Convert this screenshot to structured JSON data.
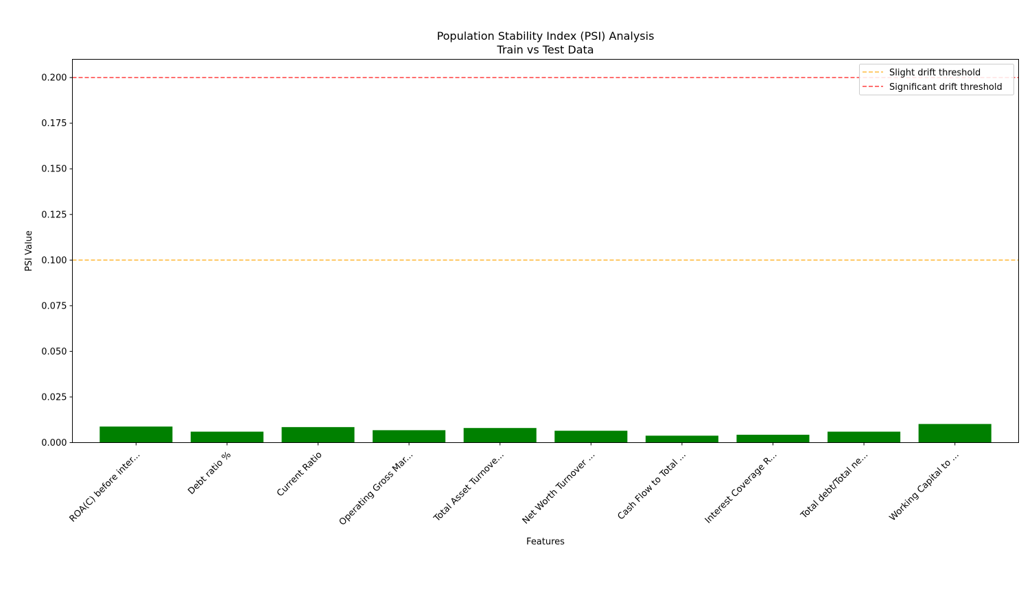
{
  "chart_data": {
    "type": "bar",
    "title": "Population Stability Index (PSI) Analysis",
    "subtitle": "Train vs Test Data",
    "xlabel": "Features",
    "ylabel": "PSI Value",
    "ylim": [
      0,
      0.21
    ],
    "yticks": [
      "0.000",
      "0.025",
      "0.050",
      "0.075",
      "0.100",
      "0.125",
      "0.150",
      "0.175",
      "0.200"
    ],
    "categories": [
      "ROA(C) before inter...",
      "Debt ratio %",
      "Current Ratio",
      "Operating Gross Mar...",
      "Total Asset Turnove...",
      "Net Worth Turnover ...",
      "Cash Flow to Total ...",
      "Interest Coverage R...",
      "Total debt/Total ne...",
      "Working Capital to ..."
    ],
    "values": [
      0.0088,
      0.006,
      0.0085,
      0.0068,
      0.008,
      0.0065,
      0.0038,
      0.0043,
      0.006,
      0.0102
    ],
    "bar_color": "#008000",
    "thresholds": [
      {
        "name": "Slight drift threshold",
        "value": 0.1,
        "color": "#FFA500"
      },
      {
        "name": "Significant drift threshold",
        "value": 0.2,
        "color": "#FF0000"
      }
    ],
    "legend_position": "top-right",
    "grid": false
  }
}
